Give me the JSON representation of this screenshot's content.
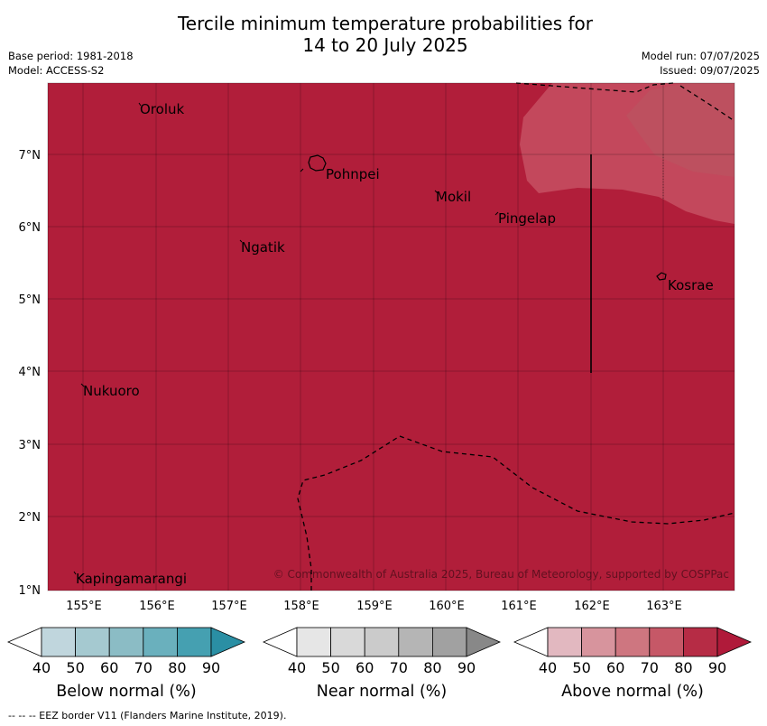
{
  "title": {
    "line1": "Tercile minimum temperature probabilities for",
    "line2": "14 to 20 July 2025"
  },
  "meta": {
    "base_period": "Base period: 1981-2018",
    "model": "Model: ACCESS-S2",
    "model_run": "Model run: 07/07/2025",
    "issued": "Issued: 09/07/2025"
  },
  "map": {
    "lon_ticks": [
      "155°E",
      "156°E",
      "157°E",
      "158°E",
      "159°E",
      "160°E",
      "161°E",
      "162°E",
      "163°E"
    ],
    "lat_ticks": [
      "7°N",
      "6°N",
      "5°N",
      "4°N",
      "3°N",
      "2°N",
      "1°N"
    ],
    "background_category": "Above normal 80-90%",
    "islands": [
      {
        "name": "Oroluk"
      },
      {
        "name": "Pohnpei"
      },
      {
        "name": "Mokil"
      },
      {
        "name": "Pingelap"
      },
      {
        "name": "Ngatik"
      },
      {
        "name": "Kosrae"
      },
      {
        "name": "Nukuoro"
      },
      {
        "name": "Kapingamarangi"
      }
    ],
    "copyright": "© Commonwealth of Australia 2025, Bureau of Meteorology, supported by COSPPac"
  },
  "colorbars": [
    {
      "label": "Below normal (%)",
      "ticks": [
        "40",
        "50",
        "60",
        "70",
        "80",
        "90"
      ],
      "colors": [
        "#ffffff",
        "#c0d6dd",
        "#a5c9d0",
        "#8bbcc5",
        "#6ab0bd",
        "#45a0b1",
        "#2a8fa4"
      ]
    },
    {
      "label": "Near normal (%)",
      "ticks": [
        "40",
        "50",
        "60",
        "70",
        "80",
        "90"
      ],
      "colors": [
        "#ffffff",
        "#e6e6e6",
        "#d9d9d9",
        "#cbcbcb",
        "#b5b5b5",
        "#a1a1a1",
        "#888888"
      ]
    },
    {
      "label": "Above normal (%)",
      "ticks": [
        "40",
        "50",
        "60",
        "70",
        "80",
        "90"
      ],
      "colors": [
        "#ffffff",
        "#e2b8c0",
        "#d7949d",
        "#ce7680",
        "#c65867",
        "#b62c45",
        "#b01a3a"
      ]
    }
  ],
  "colors": {
    "above_80_90": "#b11e3a",
    "above_70_80": "#c64b5d",
    "above_60_70": "#c25863"
  },
  "footnote": "--  --  -- EEZ border V11 (Flanders Marine Institute, 2019)."
}
